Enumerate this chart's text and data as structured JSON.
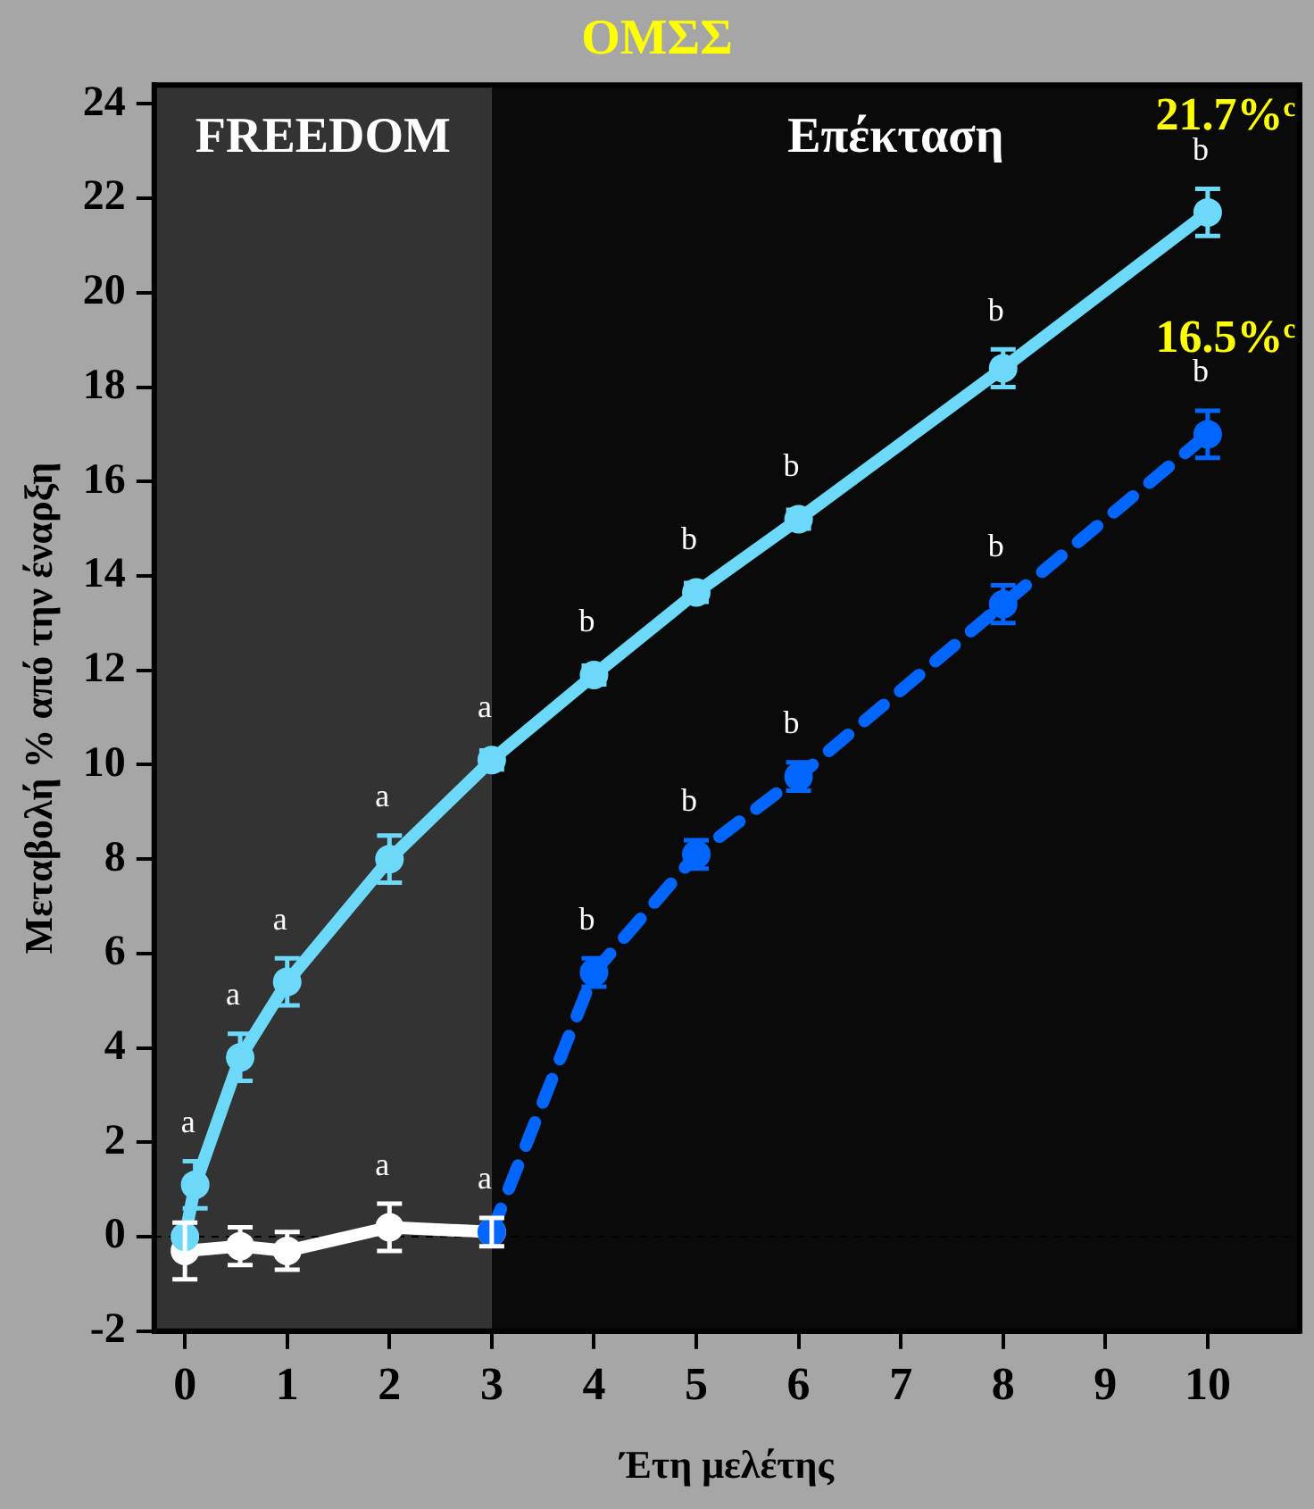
{
  "chart_data": {
    "type": "line",
    "title": "ΟΜΣΣ",
    "xlabel": "Έτη μελέτης",
    "ylabel": "Μεταβολή % από την έναρξη",
    "xlim": [
      -0.3,
      10.9
    ],
    "xticks": [
      0,
      1,
      2,
      3,
      4,
      5,
      6,
      7,
      8,
      9,
      10
    ],
    "ylim": [
      -2,
      24.4
    ],
    "yticks": [
      -2,
      0,
      2,
      4,
      6,
      8,
      10,
      12,
      14,
      16,
      18,
      20,
      22,
      24
    ],
    "grid": false,
    "legend": false,
    "marker": "circle",
    "series": [
      {
        "color": "#6cd8fa",
        "line_style": "solid",
        "x": [
          0,
          0.1,
          0.54,
          1,
          2,
          3,
          4,
          5,
          6,
          8,
          10
        ],
        "values": [
          0,
          1.1,
          3.8,
          5.4,
          8.0,
          10.1,
          11.9,
          13.65,
          15.2,
          18.4,
          21.7
        ],
        "errors": [
          null,
          0.5,
          0.5,
          0.5,
          0.5,
          0.2,
          0.2,
          0.2,
          0.2,
          0.4,
          0.5
        ],
        "value_labels": [
          null,
          "a",
          "a",
          "a",
          "a",
          "a",
          "b",
          "b",
          "b",
          "b",
          "b"
        ]
      },
      {
        "color": "#0066ff",
        "line_style": "dashed",
        "x": [
          3,
          4,
          5,
          6,
          8,
          10
        ],
        "values": [
          0.1,
          5.6,
          8.1,
          9.75,
          13.4,
          17.0
        ],
        "errors": [
          null,
          0.3,
          0.3,
          0.3,
          0.4,
          0.5
        ],
        "value_labels": [
          null,
          "b",
          "b",
          "b",
          "b",
          "b"
        ]
      },
      {
        "color": "#ffffff",
        "line_style": "solid",
        "x": [
          0,
          0.54,
          1,
          2,
          3
        ],
        "values": [
          -0.3,
          -0.2,
          -0.3,
          0.2,
          0.1
        ],
        "errors": [
          0.6,
          0.4,
          0.4,
          0.5,
          0.3
        ],
        "value_labels": [
          null,
          null,
          null,
          "a",
          "a"
        ]
      }
    ],
    "bands": [
      {
        "axis": "x",
        "from": -0.3,
        "to": 3,
        "label": "FREEDOM",
        "color": "#333333"
      },
      {
        "axis": "x",
        "from": 3,
        "to": 10.9,
        "label": "Επέκταση",
        "color": "#0a0a0a"
      }
    ],
    "ref_lines": [
      {
        "axis": "y",
        "value": 0,
        "color": "#000000",
        "line_style": "dashed"
      }
    ],
    "annotations": [
      {
        "text": "21.7%$^{c}$",
        "x": 10,
        "y": 21.7
      },
      {
        "text": "16.5%$^{c}$",
        "x": 10,
        "y": 17.0
      }
    ]
  }
}
